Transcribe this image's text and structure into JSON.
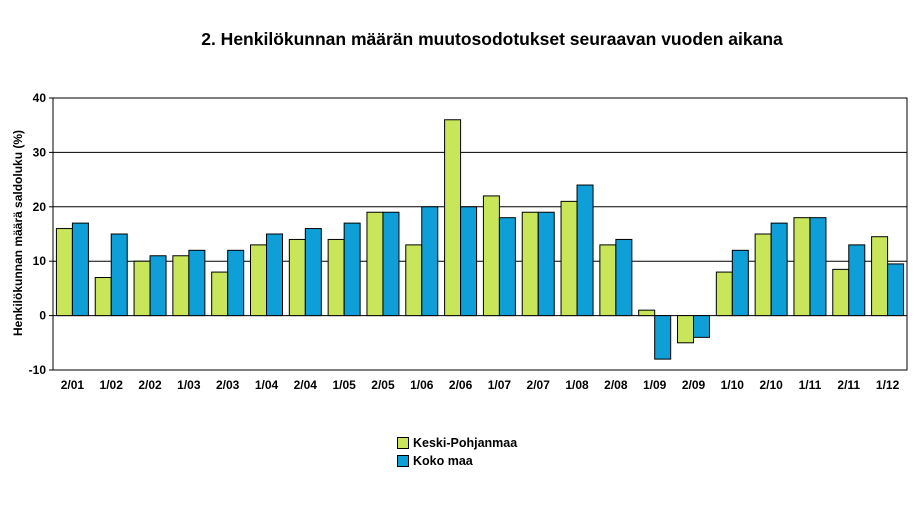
{
  "chart_data": {
    "type": "bar",
    "title": "2. Henkilökunnan määrän muutosodotukset seuraavan vuoden aikana",
    "xlabel": "",
    "ylabel": "Henkilökunnan määrä saldoluku (%)",
    "ylim": [
      -10,
      40
    ],
    "yticks": [
      "40",
      "30",
      "20",
      "10",
      "0",
      "-10"
    ],
    "ytick_values": [
      40,
      30,
      20,
      10,
      0,
      -10
    ],
    "grid": true,
    "legend_position": "bottom-center",
    "categories": [
      "2/01",
      "1/02",
      "2/02",
      "1/03",
      "2/03",
      "1/04",
      "2/04",
      "1/05",
      "2/05",
      "1/06",
      "2/06",
      "1/07",
      "2/07",
      "1/08",
      "2/08",
      "1/09",
      "2/09",
      "1/10",
      "2/10",
      "1/11",
      "2/11",
      "1/12"
    ],
    "series": [
      {
        "name": "Keski-Pohjanmaa",
        "color": "#c9e55a",
        "values": [
          16,
          7,
          10,
          11,
          8,
          13,
          14,
          14,
          19,
          13,
          36,
          22,
          19,
          21,
          13,
          1,
          -5,
          8,
          15,
          18,
          8.5,
          14.5
        ]
      },
      {
        "name": "Koko maa",
        "color": "#0f9fd8",
        "values": [
          17,
          15,
          11,
          12,
          12,
          15,
          16,
          17,
          19,
          20,
          20,
          18,
          19,
          24,
          14,
          -8,
          -4,
          12,
          17,
          18,
          13,
          9.5
        ]
      }
    ]
  }
}
